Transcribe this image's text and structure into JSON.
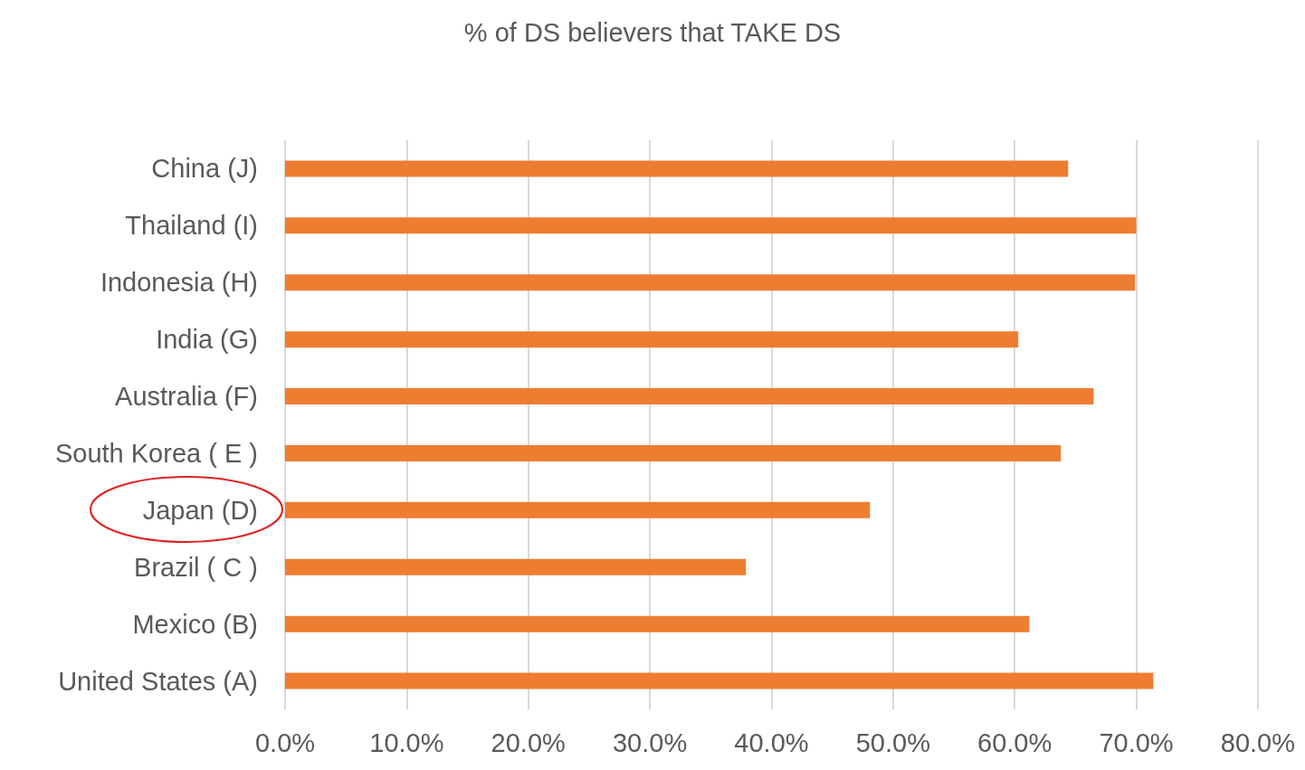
{
  "chart_data": {
    "type": "bar",
    "orientation": "horizontal",
    "title": "% of DS believers that TAKE DS",
    "categories": [
      "China (J)",
      "Thailand (I)",
      "Indonesia (H)",
      "India (G)",
      "Australia (F)",
      "South Korea ( E )",
      "Japan (D)",
      "Brazil ( C )",
      "Mexico (B)",
      "United States (A)"
    ],
    "values": [
      64.4,
      70,
      69.9,
      60.3,
      66.5,
      63.8,
      48.1,
      37.9,
      61.2,
      71.4
    ],
    "color": "#ed7d31",
    "xlim": [
      0,
      80
    ],
    "xticks": [
      {
        "value": 0,
        "label": "0.0%"
      },
      {
        "value": 10,
        "label": "10.0%"
      },
      {
        "value": 20,
        "label": "20.0%"
      },
      {
        "value": 30,
        "label": "30.0%"
      },
      {
        "value": 40,
        "label": "40.0%"
      },
      {
        "value": 50,
        "label": "50.0%"
      },
      {
        "value": 60,
        "label": "60.0%"
      },
      {
        "value": 70,
        "label": "70.0%"
      },
      {
        "value": 80,
        "label": "80.0%"
      }
    ],
    "grid": "x"
  }
}
